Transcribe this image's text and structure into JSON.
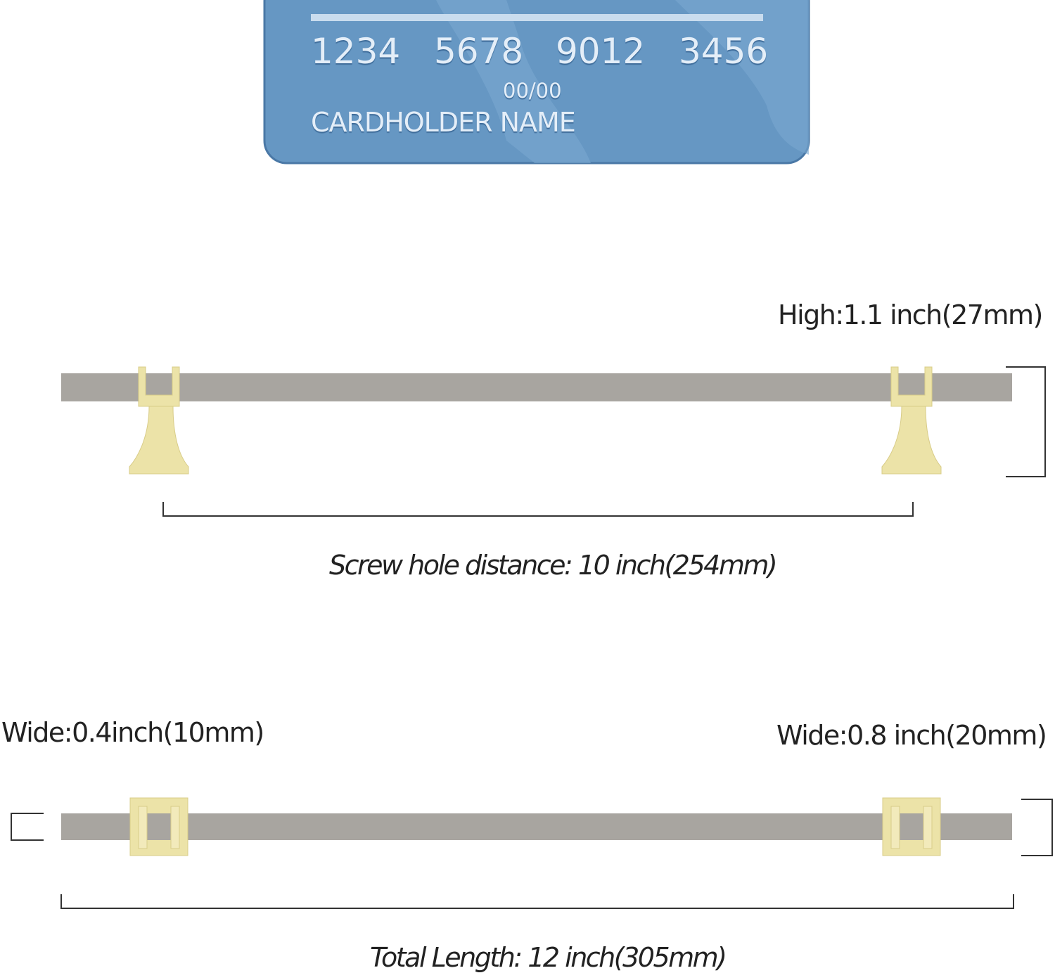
{
  "card": {
    "number_groups": [
      "1234",
      "5678",
      "9012",
      "3456"
    ],
    "expiry": "00/00",
    "holder": "CARDHOLDER NAME",
    "color": "#6697c3"
  },
  "side_view": {
    "height_label": "High:1.1 inch(27mm)",
    "screw_hole_label": "Screw hole distance: 10  inch(254mm)"
  },
  "top_view": {
    "bar_width_label": "Wide:0.4inch(10mm)",
    "post_width_label": "Wide:0.8 inch(20mm)",
    "total_length_label": "Total Length:  12 inch(305mm)"
  },
  "colors": {
    "bar": "#a8a5a0",
    "post": "#ece3a8",
    "line": "#333333"
  }
}
